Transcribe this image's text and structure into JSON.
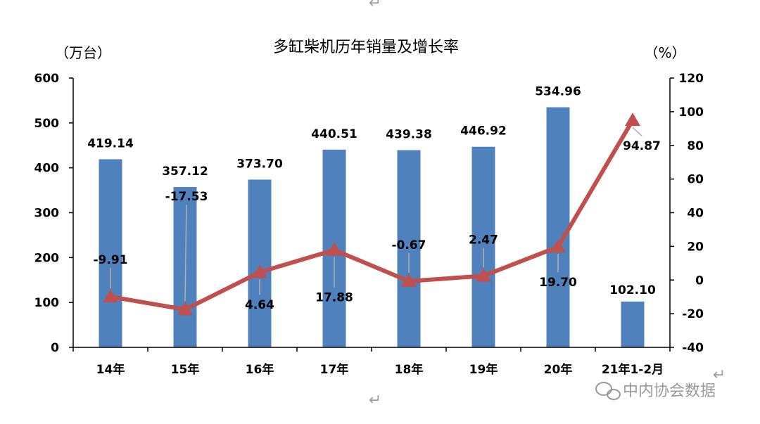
{
  "chart_data": {
    "type": "bar+line",
    "title": "多缸柴机历年销量及增长率",
    "y_left_unit": "（万台）",
    "y_right_unit": "（%）",
    "categories": [
      "14年",
      "15年",
      "16年",
      "17年",
      "18年",
      "19年",
      "20年",
      "21年1-2月"
    ],
    "bar_series": {
      "values": [
        419.14,
        357.12,
        373.7,
        440.51,
        439.38,
        446.92,
        534.96,
        102.1
      ],
      "labels": [
        "419.14",
        "357.12",
        "373.70",
        "440.51",
        "439.38",
        "446.92",
        "534.96",
        "102.10"
      ],
      "color": "#4f81bd"
    },
    "line_series": {
      "values": [
        -9.91,
        -17.53,
        4.64,
        17.88,
        -0.67,
        2.47,
        19.7,
        94.87
      ],
      "labels": [
        "-9.91",
        "-17.53",
        "4.64",
        "17.88",
        "-0.67",
        "2.47",
        "19.70",
        "94.87"
      ],
      "color": "#c0504d"
    },
    "y_left": {
      "min": 0,
      "max": 600,
      "ticks": [
        "0",
        "100",
        "200",
        "300",
        "400",
        "500",
        "600"
      ]
    },
    "y_right": {
      "min": -40,
      "max": 120,
      "ticks": [
        "-40",
        "-20",
        "0",
        "20",
        "40",
        "60",
        "80",
        "100",
        "120"
      ]
    },
    "grid": false
  },
  "marks": {
    "return_symbol": "↵"
  },
  "watermark": "中内协会数据"
}
